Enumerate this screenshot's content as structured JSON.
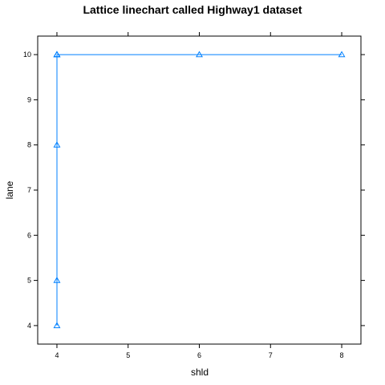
{
  "chart_data": {
    "type": "line",
    "title": "Lattice linechart called Highway1 dataset",
    "xlabel": "shld",
    "ylabel": "lane",
    "xlim": [
      3.73,
      8.27
    ],
    "ylim": [
      3.59,
      10.41
    ],
    "x_ticks": [
      4,
      5,
      6,
      7,
      8
    ],
    "y_ticks": [
      4,
      5,
      6,
      7,
      8,
      9,
      10
    ],
    "series": [
      {
        "color": "#0080ff",
        "marker": "triangle-open",
        "points": [
          {
            "x": 4,
            "y": 4
          },
          {
            "x": 4,
            "y": 5
          },
          {
            "x": 4,
            "y": 8
          },
          {
            "x": 4,
            "y": 10
          },
          {
            "x": 4,
            "y": 10
          },
          {
            "x": 4,
            "y": 10
          },
          {
            "x": 6,
            "y": 10
          },
          {
            "x": 8,
            "y": 10
          }
        ]
      }
    ],
    "grid": false,
    "legend": "none"
  }
}
